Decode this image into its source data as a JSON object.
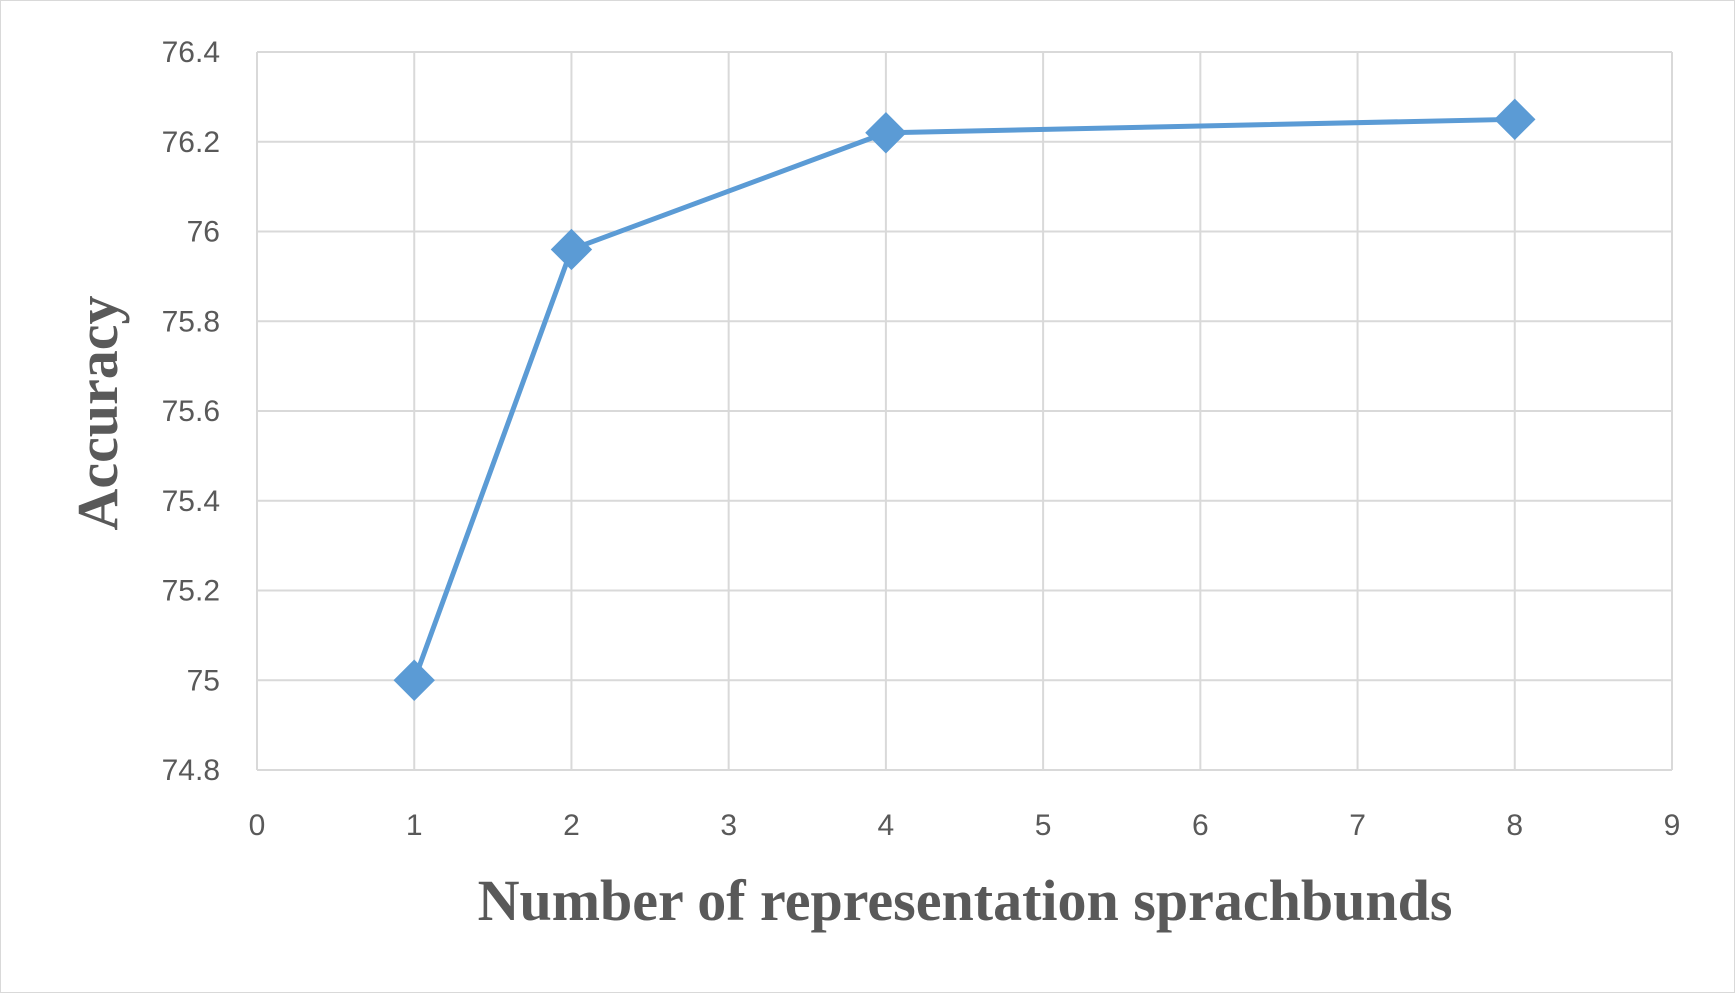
{
  "chart_data": {
    "type": "scatter",
    "title": "",
    "xlabel": "Number of  representation sprachbunds",
    "ylabel": "Accuracy",
    "xlim": [
      0,
      9
    ],
    "ylim": [
      74.8,
      76.4
    ],
    "x_ticks": [
      0,
      1,
      2,
      3,
      4,
      5,
      6,
      7,
      8,
      9
    ],
    "y_ticks": [
      74.8,
      75,
      75.2,
      75.4,
      75.6,
      75.8,
      76,
      76.2,
      76.4
    ],
    "grid": true,
    "legend": "none",
    "series": [
      {
        "x": [
          1,
          2,
          4,
          8
        ],
        "y": [
          75.0,
          75.96,
          76.22,
          76.25
        ],
        "marker": "diamond",
        "line": "straight",
        "color": "#5b9bd5"
      }
    ]
  },
  "colors": {
    "gridline": "#d9d9d9",
    "text": "#595959",
    "series": "#5b9bd5"
  }
}
